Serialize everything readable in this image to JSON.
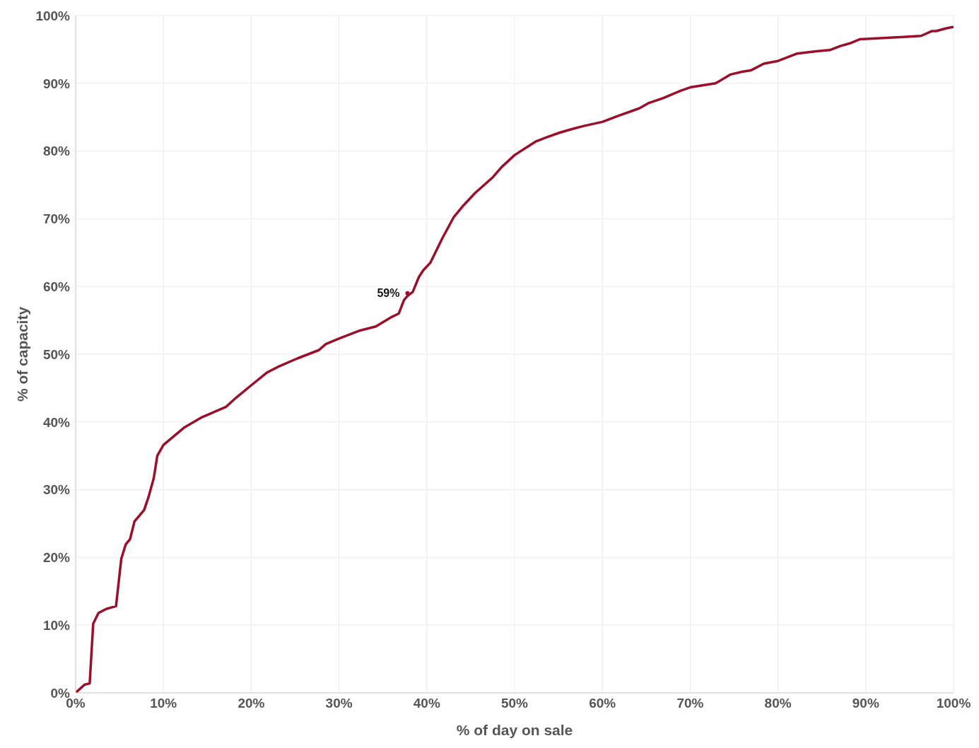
{
  "chart_data": {
    "type": "line",
    "xlabel": "% of day on sale",
    "ylabel": "% of capacity",
    "xlim": [
      0,
      100
    ],
    "ylim": [
      0,
      100
    ],
    "xticks": [
      {
        "value": 0,
        "label": "0%"
      },
      {
        "value": 10,
        "label": "10%"
      },
      {
        "value": 20,
        "label": "20%"
      },
      {
        "value": 30,
        "label": "30%"
      },
      {
        "value": 40,
        "label": "40%"
      },
      {
        "value": 50,
        "label": "50%"
      },
      {
        "value": 60,
        "label": "60%"
      },
      {
        "value": 70,
        "label": "70%"
      },
      {
        "value": 80,
        "label": "80%"
      },
      {
        "value": 90,
        "label": "90%"
      },
      {
        "value": 100,
        "label": "100%"
      }
    ],
    "yticks": [
      {
        "value": 0,
        "label": "0%"
      },
      {
        "value": 10,
        "label": "10%"
      },
      {
        "value": 20,
        "label": "20%"
      },
      {
        "value": 30,
        "label": "30%"
      },
      {
        "value": 40,
        "label": "40%"
      },
      {
        "value": 50,
        "label": "50%"
      },
      {
        "value": 60,
        "label": "60%"
      },
      {
        "value": 70,
        "label": "70%"
      },
      {
        "value": 80,
        "label": "80%"
      },
      {
        "value": 90,
        "label": "90%"
      },
      {
        "value": 100,
        "label": "100%"
      }
    ],
    "grid": true,
    "legend": false,
    "marker": "none",
    "line_style": "solid",
    "annotations": [
      {
        "text": "59%",
        "x": 37.8,
        "y": 59
      }
    ],
    "x": [
      0,
      1.0,
      1.6,
      2.0,
      2.6,
      3.5,
      4.6,
      5.2,
      5.7,
      6.2,
      6.7,
      7.8,
      8.3,
      8.9,
      9.3,
      10.0,
      11.2,
      12.4,
      14.4,
      17.1,
      18.3,
      19.8,
      21.8,
      23.0,
      25.3,
      27.7,
      28.5,
      30.0,
      32.4,
      34.2,
      36.0,
      36.8,
      37.4,
      37.8,
      38.4,
      39.1,
      39.6,
      40.4,
      41.8,
      43.1,
      44.2,
      45.5,
      47.5,
      48.5,
      50.0,
      51.2,
      52.4,
      53.6,
      55.1,
      56.7,
      57.9,
      60.0,
      61.8,
      64.2,
      65.3,
      66.9,
      68.9,
      70.0,
      72.9,
      74.6,
      75.9,
      76.9,
      78.4,
      80.0,
      81.0,
      82.2,
      84.2,
      85.9,
      87.1,
      88.2,
      89.3,
      92.4,
      96.3,
      97.5,
      98.0,
      99.1,
      99.9
    ],
    "series": [
      {
        "color": "#9b0f2b",
        "values": [
          0,
          1.2,
          1.4,
          10.2,
          11.8,
          12.4,
          12.8,
          19.8,
          21.9,
          22.7,
          25.3,
          27.0,
          28.9,
          31.7,
          35.0,
          36.6,
          37.9,
          39.2,
          40.7,
          42.2,
          43.6,
          45.2,
          47.3,
          48.1,
          49.4,
          50.6,
          51.5,
          52.3,
          53.5,
          54.1,
          55.5,
          56.0,
          58.0,
          58.6,
          59.2,
          61.4,
          62.4,
          63.5,
          67.2,
          70.3,
          72.0,
          73.8,
          76.1,
          77.6,
          79.4,
          80.4,
          81.4,
          82.0,
          82.7,
          83.3,
          83.7,
          84.3,
          85.2,
          86.3,
          87.1,
          87.8,
          88.9,
          89.4,
          90.0,
          91.3,
          91.7,
          91.9,
          92.9,
          93.3,
          93.8,
          94.4,
          94.7,
          94.9,
          95.5,
          95.9,
          96.5,
          96.7,
          97.0,
          97.7,
          97.7,
          98.1,
          98.3
        ]
      }
    ]
  }
}
